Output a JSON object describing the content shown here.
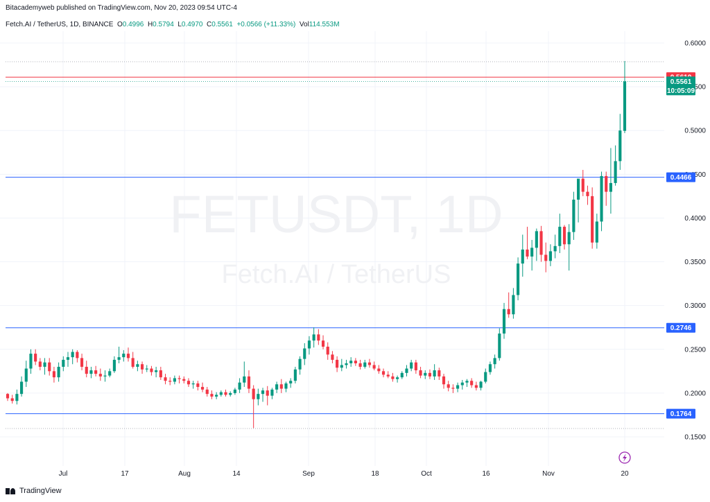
{
  "header": {
    "published": "Bitacademyweb published on TradingView.com, Nov 20, 2023 09:54 UTC-4",
    "symbol": "Fetch.AI / TetherUS, 1D, BINANCE",
    "o_label": "O",
    "o_val": "0.4996",
    "h_label": "H",
    "h_val": "0.5794",
    "l_label": "L",
    "l_val": "0.4970",
    "c_label": "C",
    "c_val": "0.5561",
    "change": "+0.0566 (+11.33%)",
    "vol_label": "Vol",
    "vol_val": "114.553M"
  },
  "watermark": {
    "ticker": "FETUSDT, 1D",
    "name": "Fetch.AI / TetherUS"
  },
  "footer": {
    "brand": "TradingView"
  },
  "colors": {
    "up": "#089981",
    "down": "#f23645",
    "level": "#2962ff",
    "resistance": "#f23645",
    "grid": "#f0f3fa",
    "axis_text": "#131722"
  },
  "icon": "lightning-icon",
  "chart_data": {
    "type": "candlestick",
    "y_ticks": [
      "0.6000",
      "0.5500",
      "0.5000",
      "0.4500",
      "0.4000",
      "0.3500",
      "0.3000",
      "0.2500",
      "0.2000",
      "0.1500"
    ],
    "x_ticks": [
      "Jul",
      "17",
      "Aug",
      "14",
      "Sep",
      "18",
      "Oct",
      "16",
      "Nov",
      "20"
    ],
    "ylim": [
      0.145,
      0.615
    ],
    "grid": true,
    "horizontal_levels": [
      {
        "value": 0.561,
        "label": "0.5610",
        "color": "#f23645"
      },
      {
        "value": 0.4466,
        "label": "0.4466",
        "color": "#2962ff"
      },
      {
        "value": 0.2746,
        "label": "0.2746",
        "color": "#2962ff"
      },
      {
        "value": 0.1764,
        "label": "0.1764",
        "color": "#2962ff"
      }
    ],
    "last_price": {
      "value": 0.5561,
      "label": "0.5561",
      "countdown": "10:05:09"
    },
    "candles": [
      [
        0.199,
        0.2,
        0.191,
        0.194
      ],
      [
        0.194,
        0.198,
        0.188,
        0.191
      ],
      [
        0.191,
        0.204,
        0.187,
        0.199
      ],
      [
        0.199,
        0.219,
        0.196,
        0.213
      ],
      [
        0.213,
        0.237,
        0.207,
        0.228
      ],
      [
        0.228,
        0.25,
        0.222,
        0.245
      ],
      [
        0.245,
        0.25,
        0.232,
        0.236
      ],
      [
        0.236,
        0.24,
        0.226,
        0.23
      ],
      [
        0.23,
        0.24,
        0.221,
        0.235
      ],
      [
        0.235,
        0.24,
        0.22,
        0.225
      ],
      [
        0.225,
        0.23,
        0.212,
        0.218
      ],
      [
        0.218,
        0.235,
        0.213,
        0.23
      ],
      [
        0.23,
        0.242,
        0.225,
        0.238
      ],
      [
        0.238,
        0.247,
        0.23,
        0.241
      ],
      [
        0.241,
        0.25,
        0.233,
        0.247
      ],
      [
        0.247,
        0.249,
        0.235,
        0.24
      ],
      [
        0.24,
        0.245,
        0.226,
        0.23
      ],
      [
        0.23,
        0.237,
        0.218,
        0.222
      ],
      [
        0.222,
        0.23,
        0.217,
        0.226
      ],
      [
        0.226,
        0.231,
        0.219,
        0.222
      ],
      [
        0.222,
        0.228,
        0.214,
        0.219
      ],
      [
        0.219,
        0.226,
        0.213,
        0.22
      ],
      [
        0.22,
        0.228,
        0.218,
        0.225
      ],
      [
        0.225,
        0.242,
        0.223,
        0.238
      ],
      [
        0.238,
        0.253,
        0.234,
        0.241
      ],
      [
        0.241,
        0.249,
        0.236,
        0.245
      ],
      [
        0.245,
        0.252,
        0.236,
        0.24
      ],
      [
        0.24,
        0.247,
        0.228,
        0.23
      ],
      [
        0.23,
        0.237,
        0.225,
        0.233
      ],
      [
        0.233,
        0.236,
        0.222,
        0.227
      ],
      [
        0.227,
        0.232,
        0.224,
        0.228
      ],
      [
        0.228,
        0.231,
        0.22,
        0.224
      ],
      [
        0.224,
        0.23,
        0.218,
        0.226
      ],
      [
        0.226,
        0.23,
        0.215,
        0.218
      ],
      [
        0.218,
        0.222,
        0.21,
        0.214
      ],
      [
        0.214,
        0.218,
        0.209,
        0.213
      ],
      [
        0.213,
        0.22,
        0.21,
        0.217
      ],
      [
        0.217,
        0.22,
        0.211,
        0.216
      ],
      [
        0.216,
        0.219,
        0.211,
        0.214
      ],
      [
        0.214,
        0.217,
        0.207,
        0.21
      ],
      [
        0.21,
        0.214,
        0.205,
        0.211
      ],
      [
        0.211,
        0.214,
        0.203,
        0.207
      ],
      [
        0.207,
        0.212,
        0.201,
        0.204
      ],
      [
        0.204,
        0.207,
        0.196,
        0.199
      ],
      [
        0.199,
        0.203,
        0.193,
        0.196
      ],
      [
        0.196,
        0.201,
        0.193,
        0.198
      ],
      [
        0.198,
        0.203,
        0.196,
        0.201
      ],
      [
        0.201,
        0.204,
        0.196,
        0.198
      ],
      [
        0.198,
        0.202,
        0.196,
        0.2
      ],
      [
        0.2,
        0.206,
        0.198,
        0.204
      ],
      [
        0.204,
        0.217,
        0.2,
        0.212
      ],
      [
        0.212,
        0.236,
        0.207,
        0.219
      ],
      [
        0.219,
        0.226,
        0.2,
        0.205
      ],
      [
        0.205,
        0.209,
        0.16,
        0.193
      ],
      [
        0.193,
        0.205,
        0.186,
        0.199
      ],
      [
        0.199,
        0.206,
        0.19,
        0.203
      ],
      [
        0.203,
        0.208,
        0.186,
        0.197
      ],
      [
        0.197,
        0.206,
        0.193,
        0.204
      ],
      [
        0.204,
        0.213,
        0.2,
        0.21
      ],
      [
        0.21,
        0.216,
        0.2,
        0.205
      ],
      [
        0.205,
        0.213,
        0.201,
        0.211
      ],
      [
        0.211,
        0.217,
        0.206,
        0.214
      ],
      [
        0.214,
        0.23,
        0.211,
        0.227
      ],
      [
        0.227,
        0.242,
        0.221,
        0.239
      ],
      [
        0.239,
        0.257,
        0.232,
        0.251
      ],
      [
        0.251,
        0.265,
        0.244,
        0.26
      ],
      [
        0.26,
        0.275,
        0.252,
        0.267
      ],
      [
        0.267,
        0.273,
        0.255,
        0.26
      ],
      [
        0.26,
        0.266,
        0.25,
        0.253
      ],
      [
        0.253,
        0.258,
        0.238,
        0.244
      ],
      [
        0.244,
        0.248,
        0.234,
        0.238
      ],
      [
        0.238,
        0.242,
        0.224,
        0.229
      ],
      [
        0.229,
        0.239,
        0.225,
        0.232
      ],
      [
        0.232,
        0.238,
        0.228,
        0.234
      ],
      [
        0.234,
        0.241,
        0.23,
        0.237
      ],
      [
        0.237,
        0.24,
        0.231,
        0.234
      ],
      [
        0.234,
        0.238,
        0.227,
        0.23
      ],
      [
        0.23,
        0.238,
        0.228,
        0.235
      ],
      [
        0.235,
        0.239,
        0.229,
        0.232
      ],
      [
        0.232,
        0.236,
        0.226,
        0.228
      ],
      [
        0.228,
        0.232,
        0.222,
        0.225
      ],
      [
        0.225,
        0.228,
        0.218,
        0.221
      ],
      [
        0.221,
        0.225,
        0.217,
        0.219
      ],
      [
        0.219,
        0.223,
        0.213,
        0.216
      ],
      [
        0.216,
        0.22,
        0.212,
        0.218
      ],
      [
        0.218,
        0.225,
        0.216,
        0.223
      ],
      [
        0.223,
        0.232,
        0.219,
        0.228
      ],
      [
        0.228,
        0.238,
        0.225,
        0.235
      ],
      [
        0.235,
        0.238,
        0.222,
        0.226
      ],
      [
        0.226,
        0.23,
        0.217,
        0.22
      ],
      [
        0.22,
        0.226,
        0.216,
        0.223
      ],
      [
        0.223,
        0.227,
        0.216,
        0.219
      ],
      [
        0.219,
        0.233,
        0.215,
        0.226
      ],
      [
        0.226,
        0.229,
        0.215,
        0.219
      ],
      [
        0.219,
        0.222,
        0.205,
        0.21
      ],
      [
        0.21,
        0.214,
        0.202,
        0.206
      ],
      [
        0.206,
        0.21,
        0.2,
        0.205
      ],
      [
        0.205,
        0.212,
        0.201,
        0.209
      ],
      [
        0.209,
        0.215,
        0.204,
        0.212
      ],
      [
        0.212,
        0.216,
        0.207,
        0.214
      ],
      [
        0.214,
        0.217,
        0.206,
        0.209
      ],
      [
        0.209,
        0.213,
        0.203,
        0.206
      ],
      [
        0.206,
        0.214,
        0.203,
        0.213
      ],
      [
        0.213,
        0.228,
        0.211,
        0.224
      ],
      [
        0.224,
        0.236,
        0.221,
        0.233
      ],
      [
        0.233,
        0.244,
        0.228,
        0.24
      ],
      [
        0.24,
        0.274,
        0.237,
        0.268
      ],
      [
        0.268,
        0.303,
        0.262,
        0.296
      ],
      [
        0.296,
        0.315,
        0.286,
        0.29
      ],
      [
        0.29,
        0.32,
        0.285,
        0.312
      ],
      [
        0.312,
        0.355,
        0.306,
        0.348
      ],
      [
        0.348,
        0.381,
        0.333,
        0.364
      ],
      [
        0.364,
        0.39,
        0.353,
        0.356
      ],
      [
        0.356,
        0.375,
        0.34,
        0.366
      ],
      [
        0.366,
        0.388,
        0.351,
        0.385
      ],
      [
        0.385,
        0.391,
        0.35,
        0.358
      ],
      [
        0.358,
        0.372,
        0.338,
        0.351
      ],
      [
        0.351,
        0.37,
        0.345,
        0.362
      ],
      [
        0.362,
        0.381,
        0.354,
        0.368
      ],
      [
        0.368,
        0.405,
        0.36,
        0.39
      ],
      [
        0.39,
        0.392,
        0.364,
        0.37
      ],
      [
        0.37,
        0.393,
        0.34,
        0.384
      ],
      [
        0.384,
        0.43,
        0.375,
        0.421
      ],
      [
        0.421,
        0.444,
        0.395,
        0.445
      ],
      [
        0.445,
        0.455,
        0.425,
        0.43
      ],
      [
        0.43,
        0.437,
        0.415,
        0.425
      ],
      [
        0.425,
        0.435,
        0.365,
        0.372
      ],
      [
        0.372,
        0.405,
        0.365,
        0.396
      ],
      [
        0.396,
        0.453,
        0.385,
        0.448
      ],
      [
        0.448,
        0.453,
        0.414,
        0.43
      ],
      [
        0.43,
        0.48,
        0.405,
        0.44
      ],
      [
        0.44,
        0.483,
        0.437,
        0.465
      ],
      [
        0.465,
        0.519,
        0.455,
        0.5
      ],
      [
        0.4996,
        0.5794,
        0.497,
        0.5561
      ]
    ]
  }
}
